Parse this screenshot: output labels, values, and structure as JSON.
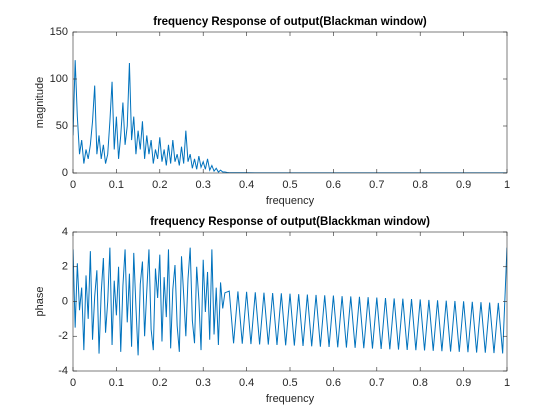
{
  "chart_data": [
    {
      "type": "line",
      "title": "frequency Response of output(Blackman window)",
      "xlabel": "frequency",
      "ylabel": "magnitude",
      "color": "#0072bd",
      "x": [
        0,
        0.005,
        0.01,
        0.015,
        0.02,
        0.025,
        0.03,
        0.035,
        0.04,
        0.045,
        0.05,
        0.055,
        0.06,
        0.065,
        0.07,
        0.075,
        0.08,
        0.085,
        0.09,
        0.095,
        0.1,
        0.105,
        0.11,
        0.115,
        0.12,
        0.125,
        0.13,
        0.135,
        0.14,
        0.145,
        0.15,
        0.155,
        0.16,
        0.165,
        0.17,
        0.175,
        0.18,
        0.185,
        0.19,
        0.195,
        0.2,
        0.205,
        0.21,
        0.215,
        0.22,
        0.225,
        0.23,
        0.235,
        0.24,
        0.245,
        0.25,
        0.255,
        0.26,
        0.265,
        0.27,
        0.275,
        0.28,
        0.285,
        0.29,
        0.295,
        0.3,
        0.305,
        0.31,
        0.315,
        0.32,
        0.325,
        0.33,
        0.335,
        0.34,
        0.345,
        0.35,
        0.355,
        0.36,
        0.4,
        0.5,
        0.6,
        0.7,
        0.8,
        0.9,
        1
      ],
      "values": [
        40,
        120,
        60,
        20,
        35,
        10,
        25,
        15,
        30,
        55,
        93,
        20,
        40,
        15,
        30,
        10,
        20,
        55,
        97,
        25,
        60,
        15,
        40,
        75,
        30,
        50,
        117,
        35,
        60,
        20,
        45,
        25,
        55,
        15,
        40,
        20,
        35,
        10,
        25,
        15,
        38,
        12,
        25,
        8,
        30,
        10,
        35,
        12,
        20,
        8,
        28,
        10,
        45,
        12,
        20,
        5,
        15,
        4,
        18,
        6,
        12,
        4,
        15,
        3,
        8,
        2,
        5,
        1,
        3,
        1,
        1,
        0.5,
        0.3,
        0.2,
        0.1,
        0.1,
        0.1,
        0.1,
        0.1,
        0.1
      ],
      "xlim": [
        0,
        1
      ],
      "ylim": [
        0,
        150
      ],
      "xticks": [
        0,
        0.1,
        0.2,
        0.3,
        0.4,
        0.5,
        0.6,
        0.7,
        0.8,
        0.9,
        1
      ],
      "yticks": [
        0,
        50,
        100,
        150
      ]
    },
    {
      "type": "line",
      "title": "frequency Response of output(Blackkman window)",
      "xlabel": "frequency",
      "ylabel": "phase",
      "color": "#0072bd",
      "x": [
        0,
        0.005,
        0.01,
        0.015,
        0.02,
        0.025,
        0.03,
        0.035,
        0.04,
        0.045,
        0.05,
        0.055,
        0.06,
        0.065,
        0.07,
        0.075,
        0.08,
        0.085,
        0.09,
        0.095,
        0.1,
        0.105,
        0.11,
        0.115,
        0.12,
        0.125,
        0.13,
        0.135,
        0.14,
        0.145,
        0.15,
        0.155,
        0.16,
        0.165,
        0.17,
        0.175,
        0.18,
        0.185,
        0.19,
        0.195,
        0.2,
        0.205,
        0.21,
        0.215,
        0.22,
        0.225,
        0.23,
        0.235,
        0.24,
        0.245,
        0.25,
        0.255,
        0.26,
        0.265,
        0.27,
        0.275,
        0.28,
        0.285,
        0.29,
        0.295,
        0.3,
        0.305,
        0.31,
        0.315,
        0.32,
        0.325,
        0.33,
        0.335,
        0.34,
        0.345,
        0.35,
        0.36,
        0.37,
        0.38,
        0.39,
        0.4,
        0.41,
        0.42,
        0.43,
        0.44,
        0.45,
        0.46,
        0.47,
        0.48,
        0.49,
        0.5,
        0.51,
        0.52,
        0.53,
        0.54,
        0.55,
        0.56,
        0.57,
        0.58,
        0.59,
        0.6,
        0.61,
        0.62,
        0.63,
        0.64,
        0.65,
        0.66,
        0.67,
        0.68,
        0.69,
        0.7,
        0.71,
        0.72,
        0.73,
        0.74,
        0.75,
        0.76,
        0.77,
        0.78,
        0.79,
        0.8,
        0.81,
        0.82,
        0.83,
        0.84,
        0.85,
        0.86,
        0.87,
        0.88,
        0.89,
        0.9,
        0.91,
        0.92,
        0.93,
        0.94,
        0.95,
        0.96,
        0.97,
        0.98,
        0.99,
        1
      ],
      "values": [
        3.0,
        -1.5,
        2.2,
        -0.5,
        0.8,
        -2.8,
        1.5,
        -1.0,
        2.9,
        -2.2,
        0.3,
        1.8,
        -3.0,
        0.5,
        2.5,
        -1.8,
        0.0,
        3.1,
        -2.5,
        1.2,
        -0.8,
        2.0,
        -2.9,
        0.9,
        3.0,
        -1.2,
        1.6,
        -2.6,
        2.8,
        -0.3,
        -3.1,
        1.0,
        2.3,
        -2.0,
        0.6,
        3.0,
        -1.6,
        -2.8,
        1.9,
        0.2,
        2.7,
        -2.3,
        1.4,
        -0.9,
        3.0,
        -2.7,
        0.7,
        2.1,
        -1.4,
        -2.9,
        2.6,
        0.4,
        -2.0,
        1.3,
        3.1,
        -1.1,
        -2.4,
        2.0,
        0.1,
        -2.8,
        2.4,
        -0.6,
        1.7,
        -2.2,
        3.0,
        -1.9,
        0.8,
        -2.5,
        1.1,
        -0.4,
        0.5,
        0.6,
        -2.41,
        0.58,
        -2.43,
        0.56,
        -2.45,
        0.53,
        -2.47,
        0.51,
        -2.48,
        0.49,
        -2.5,
        0.47,
        -2.52,
        0.45,
        -2.54,
        0.42,
        -2.56,
        0.4,
        -2.58,
        0.38,
        -2.6,
        0.36,
        -2.62,
        0.34,
        -2.64,
        0.31,
        -2.65,
        0.29,
        -2.67,
        0.27,
        -2.69,
        0.25,
        -2.71,
        0.23,
        -2.73,
        0.2,
        -2.75,
        0.18,
        -2.77,
        0.16,
        -2.79,
        0.14,
        -2.8,
        0.12,
        -2.82,
        0.09,
        -2.84,
        0.07,
        -2.86,
        0.05,
        -2.88,
        0.03,
        -2.9,
        0.01,
        -2.92,
        -0.02,
        -2.94,
        -0.04,
        -2.95,
        -0.06,
        -2.97,
        -0.08,
        -2.99,
        3.1
      ],
      "xlim": [
        0,
        1
      ],
      "ylim": [
        -4,
        4
      ],
      "xticks": [
        0,
        0.1,
        0.2,
        0.3,
        0.4,
        0.5,
        0.6,
        0.7,
        0.8,
        0.9,
        1
      ],
      "yticks": [
        -4,
        -2,
        0,
        2,
        4
      ]
    }
  ]
}
